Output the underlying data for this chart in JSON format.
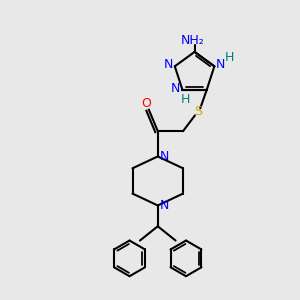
{
  "bg_color": "#e8e8e8",
  "bond_color": "#000000",
  "N_color": "#0000FF",
  "O_color": "#FF0000",
  "S_color": "#CCAA00",
  "H_color": "#008080",
  "line_width": 1.5,
  "font_size": 9,
  "figsize": [
    3.0,
    3.0
  ],
  "dpi": 100,
  "xlim": [
    0,
    10
  ],
  "ylim": [
    0,
    10
  ]
}
